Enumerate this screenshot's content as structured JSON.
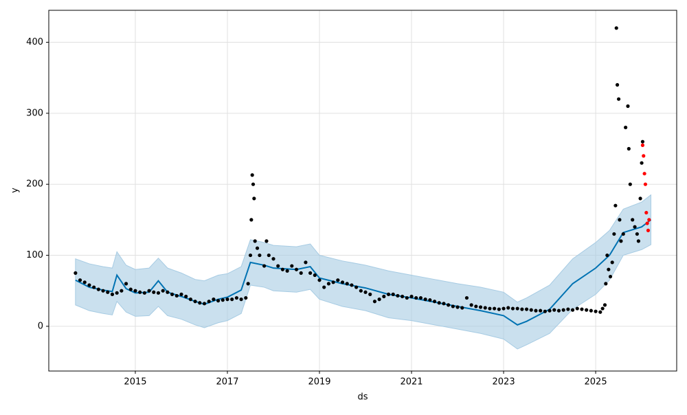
{
  "chart_data": {
    "type": "line",
    "xlabel": "ds",
    "ylabel": "y",
    "xlim": [
      2013.12,
      2026.76
    ],
    "ylim": [
      -63,
      445
    ],
    "xticks": [
      2015,
      2017,
      2019,
      2021,
      2023,
      2025
    ],
    "yticks": [
      0,
      100,
      200,
      300,
      400
    ],
    "grid": true,
    "series": [
      {
        "type": "area",
        "color": "#a6cbe3",
        "x": [
          2013.7,
          2014.0,
          2014.3,
          2014.5,
          2014.6,
          2014.8,
          2015.0,
          2015.3,
          2015.5,
          2015.7,
          2016.0,
          2016.3,
          2016.5,
          2016.8,
          2017.0,
          2017.3,
          2017.5,
          2017.8,
          2018.0,
          2018.5,
          2018.8,
          2019.0,
          2019.5,
          2020.0,
          2020.5,
          2021.0,
          2021.5,
          2022.0,
          2022.5,
          2023.0,
          2023.3,
          2023.5,
          2024.0,
          2024.5,
          2025.0,
          2025.3,
          2025.6,
          2026.0,
          2026.2
        ],
        "lower": [
          30,
          22,
          18,
          16,
          35,
          20,
          14,
          15,
          28,
          15,
          10,
          2,
          -2,
          5,
          8,
          18,
          58,
          55,
          50,
          48,
          52,
          38,
          28,
          22,
          12,
          8,
          2,
          -4,
          -10,
          -18,
          -32,
          -26,
          -10,
          24,
          45,
          65,
          100,
          108,
          115
        ],
        "upper": [
          95,
          88,
          84,
          82,
          105,
          86,
          80,
          82,
          96,
          82,
          75,
          66,
          64,
          72,
          74,
          84,
          122,
          118,
          114,
          112,
          116,
          100,
          92,
          86,
          78,
          72,
          66,
          60,
          55,
          48,
          34,
          40,
          58,
          95,
          118,
          135,
          165,
          175,
          185
        ]
      },
      {
        "type": "line",
        "color": "#0072b2",
        "x": [
          2013.7,
          2014.0,
          2014.3,
          2014.5,
          2014.6,
          2014.8,
          2015.0,
          2015.3,
          2015.5,
          2015.7,
          2016.0,
          2016.3,
          2016.5,
          2016.8,
          2017.0,
          2017.3,
          2017.5,
          2017.8,
          2018.0,
          2018.5,
          2018.8,
          2019.0,
          2019.5,
          2020.0,
          2020.5,
          2021.0,
          2021.5,
          2022.0,
          2022.5,
          2023.0,
          2023.3,
          2023.5,
          2024.0,
          2024.5,
          2025.0,
          2025.3,
          2025.6,
          2026.0,
          2026.2
        ],
        "values": [
          65,
          55,
          51,
          49,
          72,
          53,
          47,
          48,
          64,
          48,
          42,
          35,
          31,
          38,
          41,
          51,
          90,
          86,
          82,
          80,
          84,
          68,
          60,
          54,
          45,
          40,
          34,
          28,
          22,
          15,
          2,
          7,
          24,
          60,
          82,
          100,
          132,
          140,
          150
        ]
      },
      {
        "type": "scatter",
        "color": "#000000",
        "x": [
          2013.7,
          2013.8,
          2013.9,
          2014.0,
          2014.1,
          2014.2,
          2014.3,
          2014.4,
          2014.5,
          2014.6,
          2014.7,
          2014.8,
          2014.9,
          2015.0,
          2015.1,
          2015.2,
          2015.3,
          2015.4,
          2015.5,
          2015.6,
          2015.7,
          2015.8,
          2015.9,
          2016.0,
          2016.1,
          2016.2,
          2016.3,
          2016.4,
          2016.5,
          2016.6,
          2016.7,
          2016.8,
          2016.9,
          2017.0,
          2017.1,
          2017.2,
          2017.3,
          2017.4,
          2017.45,
          2017.5,
          2017.52,
          2017.54,
          2017.56,
          2017.58,
          2017.6,
          2017.65,
          2017.7,
          2017.8,
          2017.85,
          2017.9,
          2018.0,
          2018.1,
          2018.2,
          2018.3,
          2018.4,
          2018.5,
          2018.6,
          2018.7,
          2018.8,
          2018.9,
          2019.0,
          2019.1,
          2019.2,
          2019.3,
          2019.4,
          2019.5,
          2019.6,
          2019.7,
          2019.8,
          2019.9,
          2020.0,
          2020.1,
          2020.2,
          2020.3,
          2020.4,
          2020.5,
          2020.6,
          2020.7,
          2020.8,
          2020.9,
          2021.0,
          2021.1,
          2021.2,
          2021.3,
          2021.4,
          2021.5,
          2021.6,
          2021.7,
          2021.8,
          2021.9,
          2022.0,
          2022.1,
          2022.2,
          2022.3,
          2022.4,
          2022.5,
          2022.6,
          2022.7,
          2022.8,
          2022.9,
          2023.0,
          2023.1,
          2023.2,
          2023.3,
          2023.4,
          2023.5,
          2023.6,
          2023.7,
          2023.8,
          2023.9,
          2024.0,
          2024.1,
          2024.2,
          2024.3,
          2024.4,
          2024.5,
          2024.6,
          2024.7,
          2024.8,
          2024.9,
          2025.0,
          2025.1,
          2025.15,
          2025.2,
          2025.22,
          2025.25,
          2025.28,
          2025.32,
          2025.36,
          2025.4,
          2025.43,
          2025.45,
          2025.47,
          2025.5,
          2025.52,
          2025.55,
          2025.6,
          2025.65,
          2025.7,
          2025.72,
          2025.75,
          2025.8,
          2025.85,
          2025.9,
          2025.93,
          2025.97,
          2026.0,
          2026.02
        ],
        "values": [
          75,
          65,
          62,
          58,
          55,
          52,
          50,
          48,
          45,
          47,
          50,
          60,
          52,
          50,
          48,
          47,
          50,
          48,
          47,
          50,
          48,
          45,
          43,
          45,
          42,
          38,
          35,
          33,
          32,
          35,
          38,
          36,
          37,
          38,
          38,
          40,
          38,
          40,
          60,
          100,
          150,
          213,
          200,
          180,
          120,
          110,
          100,
          85,
          120,
          100,
          95,
          85,
          80,
          78,
          85,
          80,
          75,
          90,
          75,
          72,
          65,
          55,
          60,
          62,
          65,
          62,
          60,
          58,
          55,
          50,
          48,
          45,
          35,
          38,
          42,
          45,
          45,
          43,
          42,
          40,
          42,
          40,
          40,
          38,
          37,
          35,
          33,
          32,
          30,
          28,
          27,
          26,
          40,
          30,
          28,
          27,
          26,
          25,
          25,
          24,
          25,
          26,
          25,
          25,
          24,
          24,
          23,
          22,
          22,
          21,
          22,
          23,
          22,
          23,
          24,
          23,
          25,
          24,
          23,
          22,
          21,
          20,
          25,
          30,
          60,
          100,
          80,
          70,
          90,
          130,
          170,
          420,
          340,
          320,
          150,
          120,
          130,
          280,
          310,
          250,
          200,
          150,
          140,
          130,
          120,
          180,
          230,
          260
        ]
      },
      {
        "type": "scatter",
        "color": "#ff0000",
        "x": [
          2026.02,
          2026.04,
          2026.06,
          2026.08,
          2026.1,
          2026.12,
          2026.14,
          2026.16
        ],
        "values": [
          255,
          240,
          215,
          200,
          160,
          145,
          135,
          150
        ]
      }
    ]
  }
}
